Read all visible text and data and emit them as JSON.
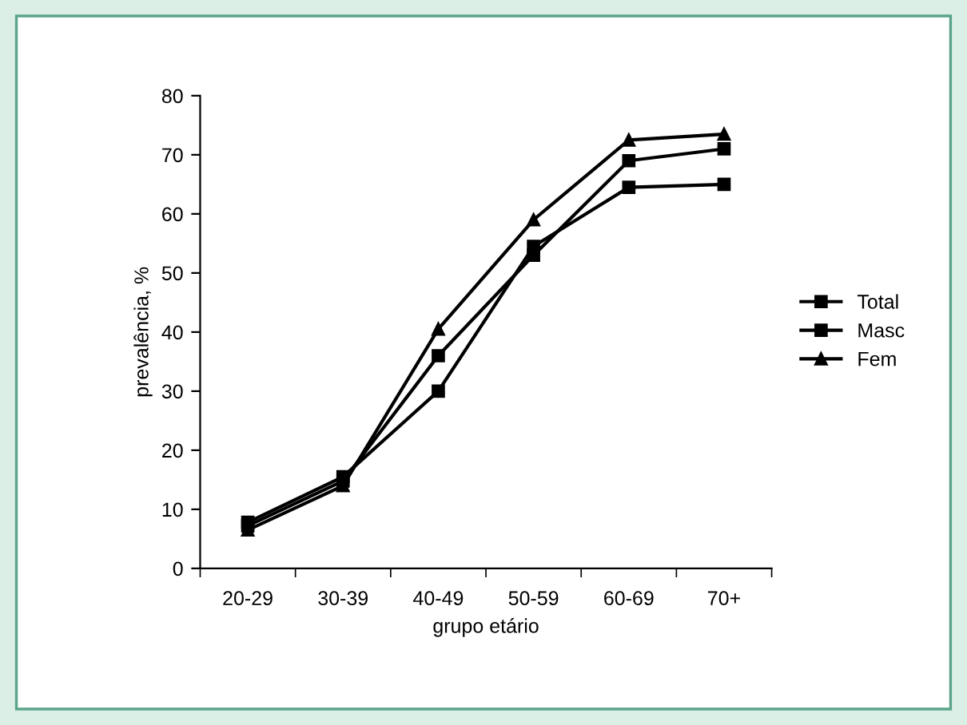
{
  "chart_data": {
    "type": "line",
    "xlabel": "grupo etário",
    "ylabel": "prevalência, %",
    "categories": [
      "20-29",
      "30-39",
      "40-49",
      "50-59",
      "60-69",
      "70+"
    ],
    "series": [
      {
        "name": "Total",
        "color": "#000000",
        "marker": "square",
        "values": [
          7.2,
          14.8,
          36,
          53,
          69,
          71
        ]
      },
      {
        "name": "Masc",
        "color": "#000000",
        "marker": "square",
        "values": [
          7.8,
          15.5,
          30,
          54.5,
          64.5,
          65
        ]
      },
      {
        "name": "Fem",
        "color": "#000000",
        "marker": "triangle",
        "values": [
          6.5,
          14,
          40.5,
          59,
          72.5,
          73.5
        ]
      }
    ],
    "ylim": [
      0,
      80
    ],
    "yticks": [
      0,
      10,
      20,
      30,
      40,
      50,
      60,
      70,
      80
    ],
    "grid": false,
    "legend": "right",
    "line_style": "solid"
  }
}
